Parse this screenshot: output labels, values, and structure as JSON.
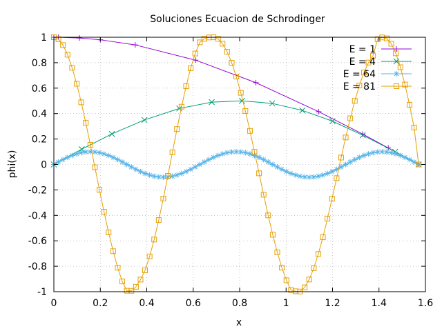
{
  "chart_data": {
    "type": "line",
    "title": "Soluciones Ecuacion de Schrodinger",
    "xlabel": "x",
    "ylabel": "phi(x)",
    "xlim": [
      0,
      1.6
    ],
    "ylim": [
      -1,
      1
    ],
    "xticks": [
      "0",
      "0.2",
      "0.4",
      "0.6",
      "0.8",
      "1",
      "1.2",
      "1.4",
      "1.6"
    ],
    "xtick_values": [
      0,
      0.2,
      0.4,
      0.6,
      0.8,
      1,
      1.2,
      1.4,
      1.6
    ],
    "yticks": [
      "-1",
      "-0.8",
      "-0.6",
      "-0.4",
      "-0.2",
      "0",
      "0.2",
      "0.4",
      "0.6",
      "0.8",
      "1"
    ],
    "ytick_values": [
      -1,
      -0.8,
      -0.6,
      -0.4,
      -0.2,
      0,
      0.2,
      0.4,
      0.6,
      0.8,
      1
    ],
    "grid": true,
    "legend_position": "top-right",
    "series": [
      {
        "name": "E = 1",
        "color": "#9400d3",
        "marker": "plus",
        "x": [
          0,
          0.02,
          0.11,
          0.2,
          0.35,
          0.61,
          0.87,
          1.14,
          1.33,
          1.44,
          1.571
        ],
        "y": [
          1,
          0.9998,
          0.994,
          0.98,
          0.94,
          0.82,
          0.643,
          0.415,
          0.239,
          0.13,
          0
        ]
      },
      {
        "name": "E = 4",
        "color": "#009e73",
        "marker": "cross",
        "x": [
          0,
          0.12,
          0.25,
          0.39,
          0.54,
          0.68,
          0.81,
          0.94,
          1.07,
          1.2,
          1.33,
          1.47,
          1.571
        ],
        "y": [
          0,
          0.12,
          0.24,
          0.35,
          0.44,
          0.49,
          0.5,
          0.48,
          0.425,
          0.34,
          0.23,
          0.1,
          0
        ]
      },
      {
        "name": "E = 64",
        "color": "#56b4e9",
        "marker": "star",
        "x": [
          0,
          0.0196,
          0.0393,
          0.0589,
          0.0785,
          0.0982,
          0.1178,
          0.1374,
          0.1571,
          0.1767,
          0.1963,
          0.216,
          0.2356,
          0.2553,
          0.2749,
          0.2945,
          0.3142,
          0.3338,
          0.3534,
          0.3731,
          0.3927,
          0.4123,
          0.432,
          0.4516,
          0.4712,
          0.4909,
          0.5105,
          0.5301,
          0.5498,
          0.5694,
          0.589,
          0.6087,
          0.6283,
          0.648,
          0.6676,
          0.6872,
          0.7069,
          0.7265,
          0.7461,
          0.7658,
          0.7854,
          0.805,
          0.8247,
          0.8443,
          0.8639,
          0.8836,
          0.9032,
          0.9228,
          0.9425,
          0.9621,
          0.9817,
          1.0014,
          1.021,
          1.0407,
          1.0603,
          1.0799,
          1.0996,
          1.1192,
          1.1388,
          1.1585,
          1.1781,
          1.1977,
          1.2174,
          1.237,
          1.2566,
          1.2763,
          1.2959,
          1.3155,
          1.3352,
          1.3548,
          1.3744,
          1.3941,
          1.4137,
          1.4334,
          1.453,
          1.4726,
          1.4923,
          1.5119,
          1.5315,
          1.5512,
          1.5708
        ],
        "y": [
          0,
          0.0195,
          0.0383,
          0.0556,
          0.0707,
          0.0831,
          0.0924,
          0.0981,
          0.1,
          0.0981,
          0.0924,
          0.0831,
          0.0707,
          0.0556,
          0.0383,
          0.0195,
          0,
          -0.0195,
          -0.0383,
          -0.0556,
          -0.0707,
          -0.0831,
          -0.0924,
          -0.0981,
          -0.1,
          -0.0981,
          -0.0924,
          -0.0831,
          -0.0707,
          -0.0556,
          -0.0383,
          -0.0195,
          0,
          0.0195,
          0.0383,
          0.0556,
          0.0707,
          0.0831,
          0.0924,
          0.0981,
          0.1,
          0.0981,
          0.0924,
          0.0831,
          0.0707,
          0.0556,
          0.0383,
          0.0195,
          0,
          -0.0195,
          -0.0383,
          -0.0556,
          -0.0707,
          -0.0831,
          -0.0924,
          -0.0981,
          -0.1,
          -0.0981,
          -0.0924,
          -0.0831,
          -0.0707,
          -0.0556,
          -0.0383,
          -0.0195,
          0,
          0.0195,
          0.0383,
          0.0556,
          0.0707,
          0.0831,
          0.0924,
          0.0981,
          0.1,
          0.0981,
          0.0924,
          0.0831,
          0.0707,
          0.0556,
          0.0383,
          0.0195,
          0
        ]
      },
      {
        "name": "E = 81",
        "color": "#e69f00",
        "marker": "square",
        "x": [
          0,
          0.0196,
          0.0393,
          0.0589,
          0.0785,
          0.0982,
          0.1178,
          0.1374,
          0.1571,
          0.1767,
          0.1963,
          0.216,
          0.2356,
          0.2553,
          0.2749,
          0.2945,
          0.3142,
          0.3338,
          0.3534,
          0.3731,
          0.3927,
          0.4123,
          0.432,
          0.4516,
          0.4712,
          0.4909,
          0.5105,
          0.5301,
          0.5498,
          0.5694,
          0.589,
          0.6087,
          0.6283,
          0.648,
          0.6676,
          0.6872,
          0.7069,
          0.7265,
          0.7461,
          0.7658,
          0.7854,
          0.805,
          0.8247,
          0.8443,
          0.8639,
          0.8836,
          0.9032,
          0.9228,
          0.9425,
          0.9621,
          0.9817,
          1.0014,
          1.021,
          1.0407,
          1.0603,
          1.0799,
          1.0996,
          1.1192,
          1.1388,
          1.1585,
          1.1781,
          1.1977,
          1.2174,
          1.237,
          1.2566,
          1.2763,
          1.2959,
          1.3155,
          1.3352,
          1.3548,
          1.3744,
          1.3941,
          1.4137,
          1.4334,
          1.453,
          1.4726,
          1.4923,
          1.5119,
          1.5315,
          1.5512,
          1.5708
        ],
        "y": [
          1,
          0.9845,
          0.9382,
          0.8627,
          0.7604,
          0.6344,
          0.4886,
          0.3271,
          0.1549,
          -0.0225,
          -0.1994,
          -0.3714,
          -0.5337,
          -0.6817,
          -0.8115,
          -0.9194,
          -0.9925,
          -0.9933,
          -0.9613,
          -0.9048,
          -0.8315,
          -0.7227,
          -0.5898,
          -0.4369,
          -0.2684,
          -0.0893,
          0.0951,
          0.2782,
          0.454,
          0.6151,
          0.7561,
          0.8723,
          0.9597,
          0.9877,
          0.9983,
          1,
          0.9877,
          0.9492,
          0.8858,
          0.7992,
          0.691,
          0.5636,
          0.42,
          0.264,
          0.0993,
          -0.0697,
          -0.2376,
          -0.3999,
          -0.5522,
          -0.6904,
          -0.8109,
          -0.9104,
          -0.9861,
          -0.9966,
          -0.9988,
          -0.9659,
          -0.9041,
          -0.8153,
          -0.7034,
          -0.5721,
          -0.4258,
          -0.2694,
          -0.1078,
          0.0542,
          0.2124,
          0.3627,
          0.5002,
          0.6212,
          0.7226,
          0.801,
          0.8549,
          0.9848,
          0.9986,
          0.9911,
          0.9491,
          0.8736,
          0.764,
          0.6281,
          0.4693,
          0.2902,
          0
        ]
      }
    ]
  }
}
